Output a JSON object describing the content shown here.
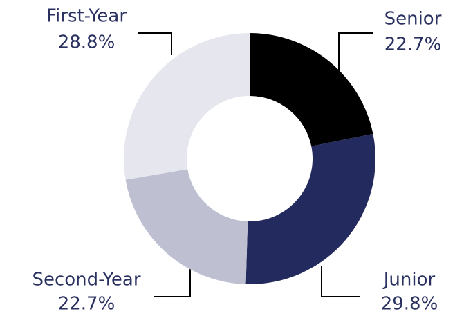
{
  "chart_data": {
    "type": "donut",
    "categories": [
      "Senior",
      "Junior",
      "Second-Year",
      "First-Year"
    ],
    "values": [
      22.7,
      29.8,
      22.7,
      28.8
    ],
    "value_labels": [
      "22.7%",
      "29.8%",
      "22.7%",
      "28.8%"
    ],
    "colors": [
      "#000000",
      "#232b5e",
      "#bec0d2",
      "#e6e6ee"
    ]
  }
}
